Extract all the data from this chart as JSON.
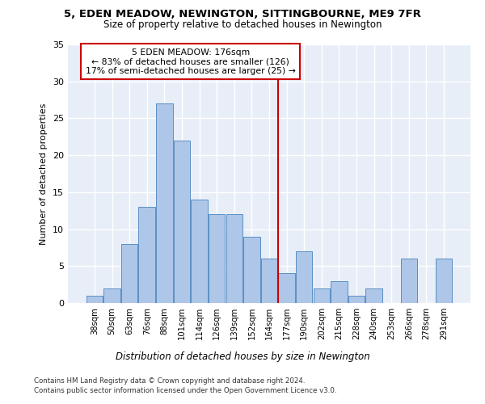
{
  "title1": "5, EDEN MEADOW, NEWINGTON, SITTINGBOURNE, ME9 7FR",
  "title2": "Size of property relative to detached houses in Newington",
  "xlabel": "Distribution of detached houses by size in Newington",
  "ylabel": "Number of detached properties",
  "categories": [
    "38sqm",
    "50sqm",
    "63sqm",
    "76sqm",
    "88sqm",
    "101sqm",
    "114sqm",
    "126sqm",
    "139sqm",
    "152sqm",
    "164sqm",
    "177sqm",
    "190sqm",
    "202sqm",
    "215sqm",
    "228sqm",
    "240sqm",
    "253sqm",
    "266sqm",
    "278sqm",
    "291sqm"
  ],
  "values": [
    1,
    2,
    8,
    13,
    27,
    22,
    14,
    12,
    12,
    9,
    6,
    4,
    7,
    2,
    3,
    1,
    2,
    0,
    6,
    0,
    6
  ],
  "bar_color": "#aec6e8",
  "bar_edge_color": "#5a8fc4",
  "vline_color": "#cc0000",
  "annotation_text": "5 EDEN MEADOW: 176sqm\n← 83% of detached houses are smaller (126)\n17% of semi-detached houses are larger (25) →",
  "annotation_box_color": "#cc0000",
  "ylim": [
    0,
    35
  ],
  "yticks": [
    0,
    5,
    10,
    15,
    20,
    25,
    30,
    35
  ],
  "background_color": "#e8eef8",
  "grid_color": "#ffffff",
  "footer1": "Contains HM Land Registry data © Crown copyright and database right 2024.",
  "footer2": "Contains public sector information licensed under the Open Government Licence v3.0."
}
